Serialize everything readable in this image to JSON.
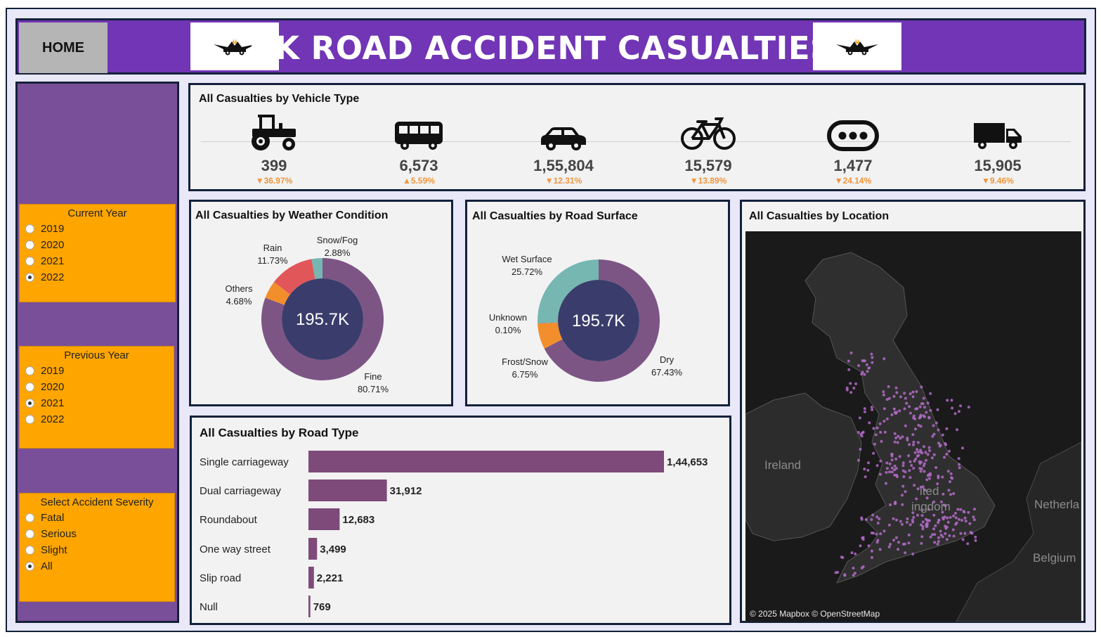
{
  "header": {
    "home_label": "HOME",
    "title": "UK ROAD ACCIDENT CASUALTIES",
    "logo_icon": "crash-car-icon",
    "bg_color": "#7135b5"
  },
  "filters": {
    "current_year": {
      "title": "Current Year",
      "options": [
        "2019",
        "2020",
        "2021",
        "2022"
      ],
      "selected": "2022"
    },
    "previous_year": {
      "title": "Previous Year",
      "options": [
        "2019",
        "2020",
        "2021",
        "2022"
      ],
      "selected": "2021"
    },
    "severity": {
      "title": "Select Accident Severity",
      "options": [
        "Fatal",
        "Serious",
        "Slight",
        "All"
      ],
      "selected": "All"
    }
  },
  "vehicles": {
    "title": "All Casualties by Vehicle Type",
    "items": [
      {
        "icon": "tractor-icon",
        "value": "399",
        "change": "▼36.97%"
      },
      {
        "icon": "bus-icon",
        "value": "6,573",
        "change": "▲5.59%"
      },
      {
        "icon": "car-icon",
        "value": "1,55,804",
        "change": "▼12.31%"
      },
      {
        "icon": "bicycle-icon",
        "value": "15,579",
        "change": "▼13.89%"
      },
      {
        "icon": "other-vehicle-icon",
        "value": "1,477",
        "change": "▼24.14%"
      },
      {
        "icon": "truck-icon",
        "value": "15,905",
        "change": "▼9.46%"
      }
    ]
  },
  "weather": {
    "title": "All Casualties by Weather Condition",
    "center_label": "195.7K"
  },
  "surface": {
    "title": "All Casualties by Road Surface",
    "center_label": "195.7K"
  },
  "road_type": {
    "title": "All Casualties by Road Type"
  },
  "location": {
    "title": "All Casualties by Location",
    "attribution": "© 2025 Mapbox © OpenStreetMap",
    "labels": {
      "ireland": "Ireland",
      "uk_line1": "ited",
      "uk_line2": "ingdom",
      "netherlands": "Netherla",
      "belgium": "Belgium"
    }
  },
  "chart_data": [
    {
      "type": "pie",
      "title": "All Casualties by Weather Condition",
      "categories": [
        "Fine",
        "Others",
        "Rain",
        "Snow/Fog"
      ],
      "values": [
        80.71,
        4.68,
        11.73,
        2.88
      ],
      "labels": [
        "80.71%",
        "4.68%",
        "11.73%",
        "2.88%"
      ],
      "colors": [
        "#7d5585",
        "#f28e2b",
        "#e15759",
        "#76b7b2"
      ],
      "center_value": "195.7K"
    },
    {
      "type": "pie",
      "title": "All Casualties by Road Surface",
      "categories": [
        "Dry",
        "Frost/Snow",
        "Unknown",
        "Wet Surface"
      ],
      "values": [
        67.43,
        6.75,
        0.1,
        25.72
      ],
      "labels": [
        "67.43%",
        "6.75%",
        "0.10%",
        "25.72%"
      ],
      "colors": [
        "#7d5585",
        "#f28e2b",
        "#e15759",
        "#76b7b2"
      ],
      "center_value": "195.7K"
    },
    {
      "type": "bar",
      "title": "All Casualties by Road Type",
      "orientation": "horizontal",
      "categories": [
        "Single carriageway",
        "Dual carriageway",
        "Roundabout",
        "One way street",
        "Slip road",
        "Null"
      ],
      "values": [
        144653,
        31912,
        12683,
        3499,
        2221,
        769
      ],
      "labels": [
        "1,44,653",
        "31,912",
        "12,683",
        "3,499",
        "2,221",
        "769"
      ],
      "color": "#7d4a7a"
    }
  ]
}
